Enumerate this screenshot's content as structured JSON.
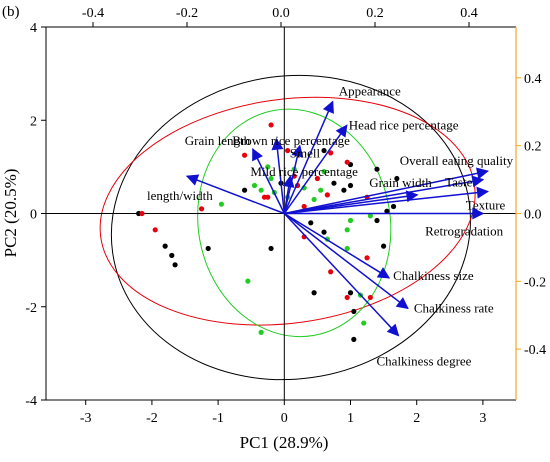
{
  "chart_data": {
    "type": "scatter",
    "panel_label": "(b)",
    "xlabel": "PC1 (28.9%)",
    "ylabel": "PC2 (20.5%)",
    "xlim": [
      -3.6,
      3.5
    ],
    "ylim": [
      -4,
      4
    ],
    "x_ticks": [
      "-3",
      "-2",
      "-1",
      "0",
      "1",
      "2",
      "3"
    ],
    "y_ticks": [
      "-4",
      "-2",
      "0",
      "2",
      "4"
    ],
    "top_xlim": [
      -0.5,
      0.5
    ],
    "top_x_ticks": [
      "-0.4",
      "-0.2",
      "0.0",
      "0.2",
      "0.4"
    ],
    "right_ylim": [
      -0.55,
      0.55
    ],
    "right_y_ticks": [
      "-0.4",
      "-0.2",
      "0.0",
      "0.2",
      "0.4"
    ],
    "colors": {
      "black": "#000000",
      "red": "#e8000b",
      "green": "#22cc22",
      "vector": "#1010d0",
      "right_axis": "#f5a623"
    },
    "loadings": [
      {
        "name": "Appearance",
        "x": 0.11,
        "y": 0.33
      },
      {
        "name": "Head rice percentage",
        "x": 0.14,
        "y": 0.26
      },
      {
        "name": "Brown rice percentage",
        "x": -0.01,
        "y": 0.22
      },
      {
        "name": "Grain length",
        "x": -0.06,
        "y": 0.19
      },
      {
        "name": "Smell",
        "x": 0.04,
        "y": 0.2
      },
      {
        "name": "Overall eating quality",
        "x": 0.44,
        "y": 0.125
      },
      {
        "name": "Taste",
        "x": 0.43,
        "y": 0.1
      },
      {
        "name": "Mild rice percentage",
        "x": 0.02,
        "y": 0.11
      },
      {
        "name": "length/width",
        "x": -0.2,
        "y": 0.11
      },
      {
        "name": "Grain width",
        "x": 0.29,
        "y": 0.055
      },
      {
        "name": "Texture",
        "x": 0.44,
        "y": 0.065
      },
      {
        "name": "Retrogradation",
        "x": 0.43,
        "y": 0.0
      },
      {
        "name": "Chalkiness size",
        "x": 0.23,
        "y": -0.19
      },
      {
        "name": "Chalkiness rate",
        "x": 0.27,
        "y": -0.28
      },
      {
        "name": "Chalkiness degree",
        "x": 0.25,
        "y": -0.36
      }
    ],
    "series": [
      {
        "color": "black",
        "points": [
          [
            -2.2,
            0.0
          ],
          [
            -1.8,
            -0.7
          ],
          [
            -1.7,
            -0.9
          ],
          [
            -1.65,
            -1.1
          ],
          [
            -1.15,
            -0.75
          ],
          [
            -0.6,
            0.5
          ],
          [
            -0.2,
            -0.75
          ],
          [
            -0.05,
            0.65
          ],
          [
            0.4,
            -0.2
          ],
          [
            0.6,
            1.35
          ],
          [
            0.6,
            -0.4
          ],
          [
            0.75,
            0.65
          ],
          [
            0.9,
            0.5
          ],
          [
            1.0,
            0.6
          ],
          [
            1.0,
            1.05
          ],
          [
            1.4,
            0.95
          ],
          [
            1.4,
            -0.15
          ],
          [
            1.5,
            -0.7
          ],
          [
            1.55,
            0.05
          ],
          [
            1.65,
            0.15
          ],
          [
            1.7,
            0.75
          ],
          [
            1.0,
            -1.7
          ],
          [
            0.45,
            -1.7
          ],
          [
            1.05,
            -2.1
          ],
          [
            1.05,
            -2.7
          ]
        ]
      },
      {
        "color": "red",
        "points": [
          [
            -2.15,
            0.0
          ],
          [
            -1.95,
            -0.35
          ],
          [
            -1.25,
            0.1
          ],
          [
            -0.6,
            1.25
          ],
          [
            -0.3,
            0.35
          ],
          [
            -0.25,
            0.35
          ],
          [
            -0.2,
            1.9
          ],
          [
            0.05,
            1.35
          ],
          [
            0.15,
            0.8
          ],
          [
            0.2,
            0.6
          ],
          [
            0.3,
            0.15
          ],
          [
            0.5,
            0.75
          ],
          [
            0.65,
            0.4
          ],
          [
            0.7,
            1.3
          ],
          [
            0.95,
            1.1
          ],
          [
            1.25,
            0.35
          ],
          [
            0.7,
            -1.25
          ],
          [
            0.95,
            -1.8
          ],
          [
            1.3,
            -1.8
          ],
          [
            1.25,
            -0.95
          ],
          [
            0.3,
            -0.5
          ]
        ]
      },
      {
        "color": "green",
        "points": [
          [
            -0.45,
            0.6
          ],
          [
            -0.35,
            0.5
          ],
          [
            -0.25,
            1.0
          ],
          [
            -0.2,
            0.75
          ],
          [
            -0.15,
            0.45
          ],
          [
            0.05,
            0.35
          ],
          [
            0.15,
            0.95
          ],
          [
            0.3,
            0.55
          ],
          [
            0.45,
            0.3
          ],
          [
            0.55,
            0.5
          ],
          [
            0.6,
            0.9
          ],
          [
            0.95,
            -0.35
          ],
          [
            1.0,
            -0.15
          ],
          [
            1.3,
            -0.05
          ],
          [
            0.65,
            -0.55
          ],
          [
            0.95,
            -0.75
          ],
          [
            -0.55,
            -1.45
          ],
          [
            -0.35,
            -2.55
          ],
          [
            1.15,
            -1.75
          ],
          [
            1.2,
            -2.35
          ],
          [
            -0.95,
            0.2
          ]
        ]
      }
    ],
    "ellipses": [
      {
        "color": "black",
        "cx": 0.1,
        "cy": -0.3,
        "rx": 2.72,
        "ry": 3.25,
        "angle": -8
      },
      {
        "color": "red",
        "cx": 0.05,
        "cy": 0.05,
        "rx": 2.85,
        "ry": 2.4,
        "angle": -8
      },
      {
        "color": "green",
        "cx": 0.15,
        "cy": -0.2,
        "rx": 1.45,
        "ry": 2.45,
        "angle": -10
      }
    ]
  }
}
